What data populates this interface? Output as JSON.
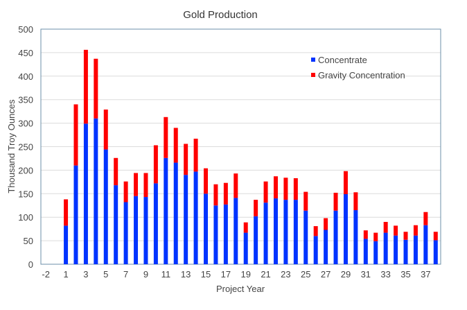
{
  "chart_data": {
    "type": "bar",
    "stacked": true,
    "title": "Gold Production",
    "xlabel": "Project Year",
    "ylabel": "Thousand Troy Ounces",
    "ylim": [
      0,
      500
    ],
    "yticks": [
      0,
      50,
      100,
      150,
      200,
      250,
      300,
      350,
      400,
      450,
      500
    ],
    "grid": true,
    "legend_position": "top-right",
    "categories": [
      "-2",
      "-1",
      "1",
      "2",
      "3",
      "4",
      "5",
      "6",
      "7",
      "8",
      "9",
      "10",
      "11",
      "12",
      "13",
      "14",
      "15",
      "16",
      "17",
      "18",
      "19",
      "20",
      "21",
      "22",
      "23",
      "24",
      "25",
      "26",
      "27",
      "28",
      "29",
      "30",
      "31",
      "32",
      "33",
      "34",
      "35",
      "36",
      "37",
      "38"
    ],
    "xtick_labels": [
      "-2",
      "1",
      "3",
      "5",
      "7",
      "9",
      "11",
      "13",
      "15",
      "17",
      "19",
      "21",
      "23",
      "25",
      "27",
      "29",
      "31",
      "33",
      "35",
      "37"
    ],
    "series": [
      {
        "name": "Concentrate",
        "color": "#0033ff",
        "values": [
          0,
          0,
          82,
          210,
          299,
          310,
          244,
          168,
          132,
          145,
          143,
          172,
          226,
          216,
          190,
          197,
          150,
          125,
          127,
          141,
          67,
          102,
          131,
          140,
          137,
          137,
          114,
          60,
          73,
          114,
          149,
          115,
          54,
          49,
          67,
          61,
          52,
          61,
          83,
          51
        ]
      },
      {
        "name": "Gravity Concentration",
        "color": "#ff0000",
        "values": [
          0,
          0,
          56,
          130,
          157,
          127,
          85,
          58,
          44,
          49,
          51,
          81,
          87,
          74,
          66,
          70,
          54,
          45,
          46,
          52,
          22,
          35,
          45,
          47,
          47,
          46,
          40,
          21,
          25,
          38,
          49,
          38,
          18,
          18,
          23,
          21,
          17,
          22,
          28,
          18
        ]
      }
    ]
  }
}
